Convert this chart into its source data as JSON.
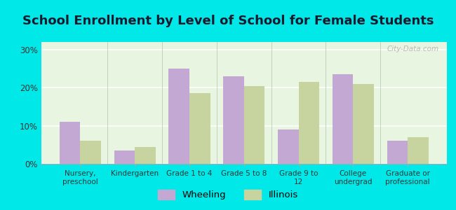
{
  "title": "School Enrollment by Level of School for Female Students",
  "categories": [
    "Nursery,\npreschool",
    "Kindergarten",
    "Grade 1 to 4",
    "Grade 5 to 8",
    "Grade 9 to\n12",
    "College\nundergrad",
    "Graduate or\nprofessional"
  ],
  "wheeling": [
    11.0,
    3.5,
    25.0,
    23.0,
    9.0,
    23.5,
    6.0
  ],
  "illinois": [
    6.0,
    4.5,
    18.5,
    20.5,
    21.5,
    21.0,
    7.0
  ],
  "wheeling_color": "#c4a8d4",
  "illinois_color": "#c8d4a0",
  "background_outer": "#00e8e8",
  "background_plot": "#e8f5e0",
  "title_fontsize": 13,
  "legend_labels": [
    "Wheeling",
    "Illinois"
  ],
  "yticks": [
    0,
    10,
    20,
    30
  ],
  "ylim": [
    0,
    32
  ],
  "bar_width": 0.38,
  "grid_color": "#ffffff",
  "watermark": "City-Data.com"
}
